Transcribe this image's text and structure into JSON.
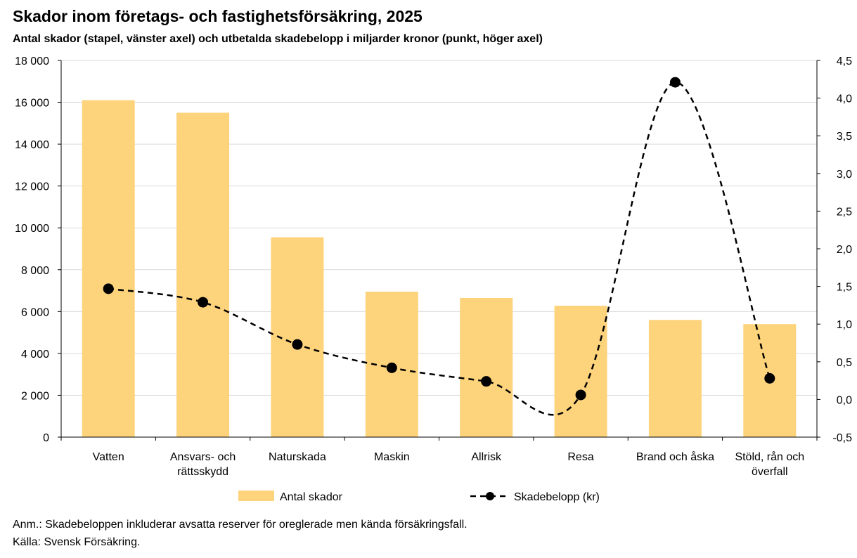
{
  "chart_data": {
    "type": "bar",
    "title": "Skador inom företags- och fastighetsförsäkring, 2025",
    "subtitle": "Antal skador (stapel, vänster axel) och utbetalda skadebelopp i miljarder kronor (punkt, höger axel)",
    "categories": [
      [
        "Vatten"
      ],
      [
        "Ansvars- och",
        "rättsskydd"
      ],
      [
        "Naturskada"
      ],
      [
        "Maskin"
      ],
      [
        "Allrisk"
      ],
      [
        "Resa"
      ],
      [
        "Brand och åska"
      ],
      [
        "Stöld, rån och",
        "överfall"
      ]
    ],
    "series": [
      {
        "name": "Antal skador",
        "type": "bar",
        "axis": "left",
        "color": "#FDD37C",
        "values": [
          16100,
          15500,
          9550,
          6950,
          6650,
          6280,
          5600,
          5400
        ]
      },
      {
        "name": "Skadebelopp (kr)",
        "type": "line",
        "axis": "right",
        "color": "#000000",
        "style": "dashed-smooth-with-markers",
        "values": [
          1.47,
          1.29,
          0.73,
          0.42,
          0.24,
          0.06,
          4.21,
          0.28
        ]
      }
    ],
    "left_axis": {
      "min": 0,
      "max": 18000,
      "step": 2000,
      "tick_labels": [
        "0",
        "2 000",
        "4 000",
        "6 000",
        "8 000",
        "10 000",
        "12 000",
        "14 000",
        "16 000",
        "18 000"
      ]
    },
    "right_axis": {
      "min": -0.5,
      "max": 4.5,
      "step": 0.5,
      "tick_labels": [
        "-0,5",
        "0,0",
        "0,5",
        "1,0",
        "1,5",
        "2,0",
        "2,5",
        "3,0",
        "3,5",
        "4,0",
        "4,5"
      ]
    },
    "grid": "horizontal",
    "legend_placement": "bottom",
    "legend": [
      "Antal skador",
      "Skadebelopp (kr)"
    ]
  },
  "notes": {
    "anm": "Anm.: Skadebeloppen inkluderar avsatta reserver för oreglerade men kända försäkringsfall.",
    "source": "Källa: Svensk Försäkring."
  }
}
